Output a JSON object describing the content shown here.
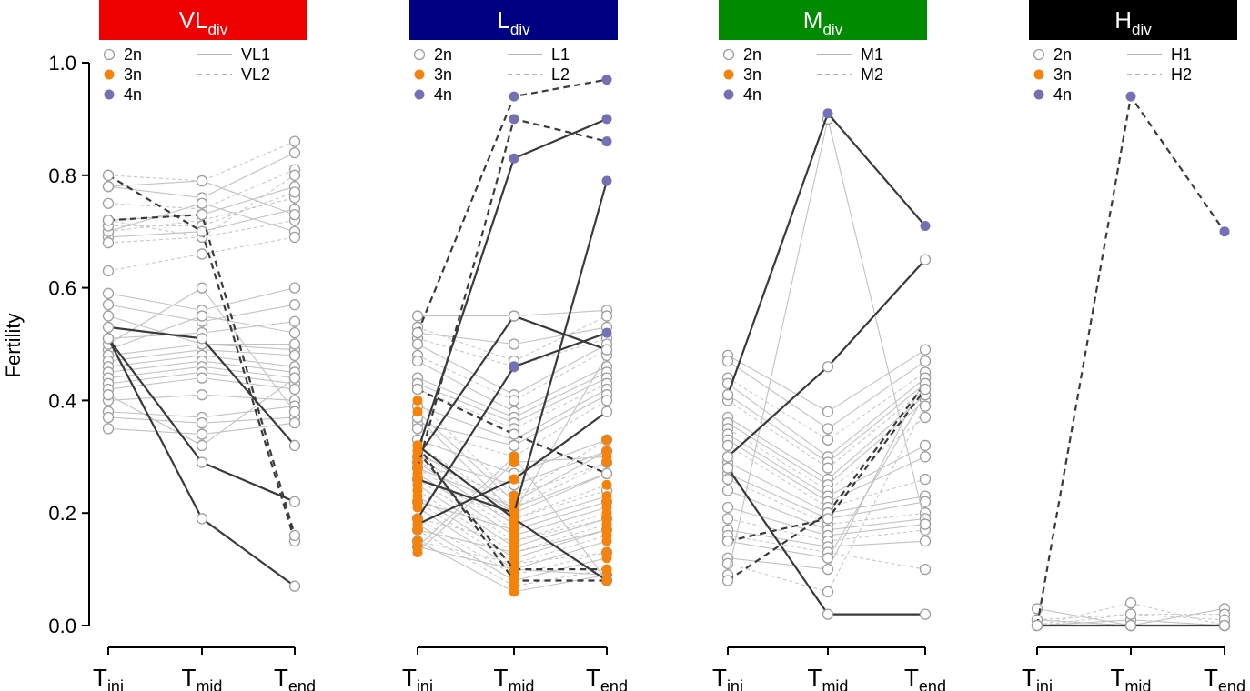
{
  "chart_data": {
    "type": "line",
    "ylabel": "Fertility",
    "ylim": [
      0,
      1
    ],
    "yticks": [
      "0.0",
      "0.2",
      "0.4",
      "0.6",
      "0.8",
      "1.0"
    ],
    "x_categories": [
      {
        "base": "T",
        "sub": "ini"
      },
      {
        "base": "T",
        "sub": "mid"
      },
      {
        "base": "T",
        "sub": "end"
      }
    ],
    "ploidy_colors": {
      "2n": "#9e9e9e",
      "3n": "#f5820b",
      "4n": "#7570b3"
    },
    "panels": [
      {
        "id": "vl",
        "title_base": "VL",
        "title_sub": "div",
        "header_color": "#ee0000",
        "legend": {
          "markers": [
            {
              "label": "2n",
              "kind": "2n"
            },
            {
              "label": "3n",
              "kind": "3n"
            },
            {
              "label": "4n",
              "kind": "4n"
            }
          ],
          "lines": [
            {
              "label": "VL1",
              "dash": false
            },
            {
              "label": "VL2",
              "dash": true
            }
          ]
        },
        "background": {
          "2n": [
            [
              0.8,
              0.79,
              0.86
            ],
            [
              0.78,
              0.76,
              0.84
            ],
            [
              0.75,
              0.74,
              0.81
            ],
            [
              0.72,
              0.73,
              0.78
            ],
            [
              0.7,
              0.72,
              0.76
            ],
            [
              0.69,
              0.7,
              0.74
            ],
            [
              0.68,
              0.69,
              0.72
            ],
            [
              0.7,
              0.75,
              0.7
            ],
            [
              0.63,
              0.66,
              0.69
            ],
            [
              0.72,
              0.69,
              0.8
            ],
            [
              0.78,
              0.79,
              0.73
            ],
            [
              0.71,
              0.71,
              0.77
            ],
            [
              0.59,
              0.56,
              0.6
            ],
            [
              0.57,
              0.54,
              0.57
            ],
            [
              0.51,
              0.52,
              0.54
            ],
            [
              0.49,
              0.55,
              0.52
            ],
            [
              0.48,
              0.5,
              0.49
            ],
            [
              0.47,
              0.49,
              0.48
            ],
            [
              0.46,
              0.48,
              0.46
            ],
            [
              0.45,
              0.47,
              0.45
            ],
            [
              0.44,
              0.46,
              0.44
            ],
            [
              0.43,
              0.45,
              0.43
            ],
            [
              0.42,
              0.44,
              0.42
            ],
            [
              0.4,
              0.41,
              0.4
            ],
            [
              0.38,
              0.37,
              0.39
            ],
            [
              0.37,
              0.36,
              0.37
            ],
            [
              0.35,
              0.34,
              0.36
            ],
            [
              0.5,
              0.6,
              0.38
            ],
            [
              0.41,
              0.32,
              0.44
            ],
            [
              0.55,
              0.5,
              0.5
            ]
          ],
          "2n_dashed": [
            0,
            2,
            4,
            6,
            8,
            9,
            11
          ]
        },
        "highlights": [
          {
            "name": "VL1",
            "dash": false,
            "values": [
              0.53,
              0.51,
              0.32
            ],
            "kinds": [
              "2n",
              "2n",
              "2n"
            ]
          },
          {
            "name": "VL1",
            "dash": false,
            "values": [
              0.51,
              0.29,
              0.22
            ],
            "kinds": [
              "2n",
              "2n",
              "2n"
            ]
          },
          {
            "name": "VL1",
            "dash": false,
            "values": [
              0.51,
              0.19,
              0.07
            ],
            "kinds": [
              "2n",
              "2n",
              "2n"
            ]
          },
          {
            "name": "VL2",
            "dash": true,
            "values": [
              0.8,
              0.7,
              0.15
            ],
            "kinds": [
              "2n",
              "2n",
              "2n"
            ]
          },
          {
            "name": "VL2",
            "dash": true,
            "values": [
              0.72,
              0.73,
              0.16
            ],
            "kinds": [
              "2n",
              "2n",
              "2n"
            ]
          }
        ]
      },
      {
        "id": "l",
        "title_base": "L",
        "title_sub": "div",
        "header_color": "#000080",
        "legend": {
          "markers": [
            {
              "label": "2n",
              "kind": "2n"
            },
            {
              "label": "3n",
              "kind": "3n"
            },
            {
              "label": "4n",
              "kind": "4n"
            }
          ],
          "lines": [
            {
              "label": "L1",
              "dash": false
            },
            {
              "label": "L2",
              "dash": true
            }
          ]
        },
        "background": {
          "2n": [
            [
              0.55,
              0.55,
              0.56
            ],
            [
              0.53,
              0.47,
              0.55
            ],
            [
              0.52,
              0.5,
              0.53
            ],
            [
              0.51,
              0.46,
              0.51
            ],
            [
              0.5,
              0.41,
              0.5
            ],
            [
              0.48,
              0.4,
              0.49
            ],
            [
              0.47,
              0.38,
              0.46
            ],
            [
              0.44,
              0.37,
              0.45
            ],
            [
              0.43,
              0.36,
              0.44
            ],
            [
              0.42,
              0.35,
              0.43
            ],
            [
              0.39,
              0.33,
              0.42
            ],
            [
              0.36,
              0.32,
              0.41
            ],
            [
              0.35,
              0.3,
              0.4
            ],
            [
              0.33,
              0.27,
              0.33
            ],
            [
              0.3,
              0.25,
              0.31
            ],
            [
              0.29,
              0.23,
              0.29
            ],
            [
              0.28,
              0.21,
              0.27
            ],
            [
              0.26,
              0.19,
              0.24
            ],
            [
              0.22,
              0.17,
              0.22
            ],
            [
              0.19,
              0.15,
              0.19
            ],
            [
              0.17,
              0.13,
              0.17
            ],
            [
              0.15,
              0.11,
              0.13
            ],
            [
              0.14,
              0.1,
              0.09
            ],
            [
              0.37,
              0.2,
              0.48
            ]
          ],
          "3n": [
            [
              0.4,
              0.23,
              0.33
            ],
            [
              0.38,
              0.22,
              0.31
            ],
            [
              0.32,
              0.21,
              0.29
            ],
            [
              0.31,
              0.2,
              0.27
            ],
            [
              0.3,
              0.19,
              0.25
            ],
            [
              0.29,
              0.18,
              0.23
            ],
            [
              0.28,
              0.17,
              0.22
            ],
            [
              0.27,
              0.16,
              0.21
            ],
            [
              0.26,
              0.15,
              0.2
            ],
            [
              0.25,
              0.14,
              0.19
            ],
            [
              0.24,
              0.13,
              0.18
            ],
            [
              0.23,
              0.12,
              0.17
            ],
            [
              0.22,
              0.11,
              0.16
            ],
            [
              0.21,
              0.1,
              0.15
            ],
            [
              0.19,
              0.09,
              0.13
            ],
            [
              0.18,
              0.08,
              0.12
            ],
            [
              0.17,
              0.07,
              0.1
            ],
            [
              0.15,
              0.06,
              0.09
            ],
            [
              0.14,
              0.3,
              0.08
            ],
            [
              0.13,
              0.29,
              0.3
            ]
          ],
          "2n_dashed": [
            1,
            3,
            5,
            9,
            12,
            15,
            17,
            19,
            21
          ],
          "3n_dashed": [
            0,
            2,
            4,
            6,
            8,
            10,
            12,
            14,
            16
          ]
        },
        "highlights": [
          {
            "name": "L1",
            "dash": false,
            "values": [
              0.31,
              0.83,
              0.9
            ],
            "kinds": [
              "3n",
              "4n",
              "4n"
            ]
          },
          {
            "name": "L1",
            "dash": false,
            "values": [
              0.19,
              0.46,
              0.52
            ],
            "kinds": [
              "3n",
              "4n",
              "4n"
            ]
          },
          {
            "name": "L1",
            "dash": false,
            "values": [
              0.3,
              0.55,
              0.49
            ],
            "kinds": [
              "3n",
              "2n",
              "2n"
            ]
          },
          {
            "name": "L1",
            "dash": false,
            "values": [
              0.26,
              0.2,
              0.79
            ],
            "kinds": [
              "3n",
              "3n",
              "4n"
            ]
          },
          {
            "name": "L1",
            "dash": false,
            "values": [
              0.32,
              0.19,
              0.08
            ],
            "kinds": [
              "3n",
              "3n",
              "2n"
            ]
          },
          {
            "name": "L1",
            "dash": false,
            "values": [
              0.18,
              0.26,
              0.38
            ],
            "kinds": [
              "3n",
              "3n",
              "2n"
            ]
          },
          {
            "name": "L2",
            "dash": true,
            "values": [
              0.52,
              0.94,
              0.97
            ],
            "kinds": [
              "2n",
              "4n",
              "4n"
            ]
          },
          {
            "name": "L2",
            "dash": true,
            "values": [
              0.28,
              0.9,
              0.86
            ],
            "kinds": [
              "3n",
              "4n",
              "4n"
            ]
          },
          {
            "name": "L2",
            "dash": true,
            "values": [
              0.42,
              0.34,
              0.27
            ],
            "kinds": [
              "2n",
              "2n",
              "2n"
            ]
          },
          {
            "name": "L2",
            "dash": true,
            "values": [
              0.32,
              0.08,
              0.08
            ],
            "kinds": [
              "3n",
              "3n",
              "3n"
            ]
          },
          {
            "name": "L2",
            "dash": true,
            "values": [
              0.31,
              0.1,
              0.1
            ],
            "kinds": [
              "3n",
              "3n",
              "3n"
            ]
          }
        ]
      },
      {
        "id": "m",
        "title_base": "M",
        "title_sub": "div",
        "header_color": "#008a00",
        "legend": {
          "markers": [
            {
              "label": "2n",
              "kind": "2n"
            },
            {
              "label": "3n",
              "kind": "3n"
            },
            {
              "label": "4n",
              "kind": "4n"
            }
          ],
          "lines": [
            {
              "label": "M1",
              "dash": false
            },
            {
              "label": "M2",
              "dash": true
            }
          ]
        },
        "background": {
          "2n": [
            [
              0.48,
              0.38,
              0.49
            ],
            [
              0.47,
              0.35,
              0.47
            ],
            [
              0.44,
              0.33,
              0.45
            ],
            [
              0.43,
              0.3,
              0.44
            ],
            [
              0.41,
              0.29,
              0.43
            ],
            [
              0.4,
              0.28,
              0.42
            ],
            [
              0.37,
              0.26,
              0.41
            ],
            [
              0.36,
              0.25,
              0.4
            ],
            [
              0.35,
              0.24,
              0.37
            ],
            [
              0.34,
              0.23,
              0.32
            ],
            [
              0.33,
              0.22,
              0.3
            ],
            [
              0.32,
              0.21,
              0.26
            ],
            [
              0.29,
              0.2,
              0.23
            ],
            [
              0.27,
              0.19,
              0.22
            ],
            [
              0.26,
              0.18,
              0.2
            ],
            [
              0.24,
              0.17,
              0.19
            ],
            [
              0.21,
              0.16,
              0.18
            ],
            [
              0.19,
              0.15,
              0.17
            ],
            [
              0.17,
              0.14,
              0.15
            ],
            [
              0.16,
              0.13,
              0.1
            ],
            [
              0.15,
              0.12,
              0.41
            ],
            [
              0.12,
              0.1,
              0.44
            ],
            [
              0.11,
              0.06,
              0.39
            ],
            [
              0.09,
              0.9,
              0.18
            ]
          ],
          "2n_dashed": [
            2,
            5,
            8,
            11,
            14,
            17,
            19,
            22
          ]
        },
        "highlights": [
          {
            "name": "M1",
            "dash": false,
            "values": [
              0.41,
              0.91,
              0.71
            ],
            "kinds": [
              "2n",
              "4n",
              "4n"
            ]
          },
          {
            "name": "M1",
            "dash": false,
            "values": [
              0.3,
              0.46,
              0.65
            ],
            "kinds": [
              "2n",
              "2n",
              "2n"
            ]
          },
          {
            "name": "M1",
            "dash": false,
            "values": [
              0.28,
              0.02,
              0.02
            ],
            "kinds": [
              "2n",
              "2n",
              "2n"
            ]
          },
          {
            "name": "M2",
            "dash": true,
            "values": [
              0.08,
              0.2,
              0.43
            ],
            "kinds": [
              "2n",
              "2n",
              "2n"
            ]
          },
          {
            "name": "M2",
            "dash": true,
            "values": [
              0.15,
              0.19,
              0.42
            ],
            "kinds": [
              "2n",
              "2n",
              "2n"
            ]
          }
        ]
      },
      {
        "id": "h",
        "title_base": "H",
        "title_sub": "div",
        "header_color": "#000000",
        "legend": {
          "markers": [
            {
              "label": "2n",
              "kind": "2n"
            },
            {
              "label": "3n",
              "kind": "3n"
            },
            {
              "label": "4n",
              "kind": "4n"
            }
          ],
          "lines": [
            {
              "label": "H1",
              "dash": false
            },
            {
              "label": "H2",
              "dash": true
            }
          ]
        },
        "background": {
          "2n": [
            [
              0.03,
              0.0,
              0.03
            ],
            [
              0.01,
              0.02,
              0.02
            ],
            [
              0.0,
              0.04,
              0.0
            ],
            [
              0.01,
              0.0,
              0.0
            ],
            [
              0.0,
              0.01,
              0.0
            ],
            [
              0.0,
              0.02,
              0.01
            ],
            [
              0.0,
              0.0,
              0.0
            ],
            [
              0.0,
              0.0,
              0.0
            ]
          ],
          "2n_dashed": [
            1,
            2,
            5
          ]
        },
        "highlights": [
          {
            "name": "H1",
            "dash": false,
            "values": [
              0.0,
              0.0,
              0.0
            ],
            "kinds": [
              "2n",
              "2n",
              "2n"
            ]
          },
          {
            "name": "H2",
            "dash": true,
            "values": [
              0.0,
              0.94,
              0.7
            ],
            "kinds": [
              "2n",
              "4n",
              "4n"
            ]
          }
        ]
      }
    ]
  }
}
